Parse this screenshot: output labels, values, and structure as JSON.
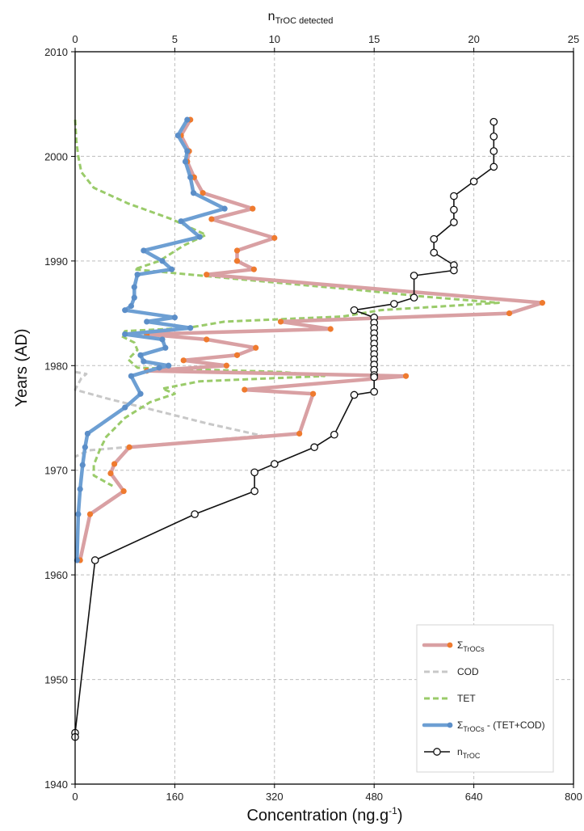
{
  "chart_data": {
    "type": "line",
    "orientation": "vertical-profile",
    "y_axis": {
      "label": "Years (AD)",
      "range": [
        1940,
        2010
      ],
      "ticks": [
        1940,
        1950,
        1960,
        1970,
        1980,
        1990,
        2000,
        2010
      ]
    },
    "x_bottom": {
      "label_main": "Concentration (ng.g",
      "label_sup": "-1",
      "label_end": ")",
      "range": [
        0,
        800
      ],
      "ticks": [
        0,
        160,
        320,
        480,
        640,
        800
      ]
    },
    "x_top": {
      "label_main": "n",
      "label_sub": "TrOC detected",
      "range": [
        0,
        25
      ],
      "ticks": [
        0,
        5,
        10,
        15,
        20,
        25
      ]
    },
    "grid": "dashed",
    "legend_position": "bottom-right",
    "series": [
      {
        "key": "total",
        "name": "Σ",
        "name_sub": "TrOCs",
        "axis": "bottom",
        "color": "#d9a0a3",
        "marker_color": "#ef7a2e",
        "style": "line+marker",
        "points": [
          [
            2003.5,
            185
          ],
          [
            2002.0,
            170
          ],
          [
            2000.5,
            183
          ],
          [
            1999.5,
            180
          ],
          [
            1998.0,
            191
          ],
          [
            1996.5,
            205
          ],
          [
            1995.0,
            285
          ],
          [
            1994.0,
            219
          ],
          [
            1992.2,
            320
          ],
          [
            1991.0,
            260
          ],
          [
            1990.0,
            260
          ],
          [
            1989.2,
            287
          ],
          [
            1988.7,
            211
          ],
          [
            1986.0,
            750
          ],
          [
            1985.0,
            697
          ],
          [
            1984.2,
            330
          ],
          [
            1983.5,
            410
          ],
          [
            1983.0,
            115
          ],
          [
            1982.5,
            211
          ],
          [
            1981.7,
            290
          ],
          [
            1981.0,
            260
          ],
          [
            1980.5,
            174
          ],
          [
            1980.0,
            243
          ],
          [
            1979.5,
            115
          ],
          [
            1979.0,
            531
          ],
          [
            1977.7,
            272
          ],
          [
            1977.3,
            382
          ],
          [
            1973.5,
            360
          ],
          [
            1972.2,
            87
          ],
          [
            1970.6,
            63
          ],
          [
            1969.7,
            57
          ],
          [
            1968.0,
            78
          ],
          [
            1965.8,
            24
          ],
          [
            1961.4,
            8
          ]
        ]
      },
      {
        "key": "cod",
        "name": "COD",
        "axis": "bottom",
        "color": "#c8c8c8",
        "style": "dashed",
        "points": [
          [
            1979.4,
            0
          ],
          [
            1979.2,
            18
          ],
          [
            1978.8,
            10
          ],
          [
            1977.7,
            0
          ],
          [
            1976.8,
            55
          ],
          [
            1975.4,
            150
          ],
          [
            1974.5,
            210
          ],
          [
            1973.3,
            300
          ],
          [
            1972.5,
            140
          ],
          [
            1971.9,
            22
          ],
          [
            1971.3,
            0
          ]
        ]
      },
      {
        "key": "tet",
        "name": "TET",
        "axis": "bottom",
        "color": "#9acb6a",
        "style": "dashed",
        "points": [
          [
            2003.5,
            0
          ],
          [
            2001.5,
            2
          ],
          [
            2000.0,
            5
          ],
          [
            1998.5,
            10
          ],
          [
            1997.0,
            30
          ],
          [
            1995.5,
            85
          ],
          [
            1994.0,
            155
          ],
          [
            1992.5,
            210
          ],
          [
            1991.5,
            175
          ],
          [
            1990.0,
            135
          ],
          [
            1989.2,
            95
          ],
          [
            1988.0,
            310
          ],
          [
            1987.2,
            460
          ],
          [
            1986.6,
            560
          ],
          [
            1986.0,
            680
          ],
          [
            1985.3,
            490
          ],
          [
            1984.7,
            430
          ],
          [
            1984.2,
            240
          ],
          [
            1983.6,
            180
          ],
          [
            1983.3,
            80
          ],
          [
            1982.8,
            75
          ],
          [
            1982.2,
            95
          ],
          [
            1981.5,
            100
          ],
          [
            1980.6,
            85
          ],
          [
            1979.8,
            100
          ],
          [
            1979.4,
            330
          ],
          [
            1979.0,
            400
          ],
          [
            1978.5,
            200
          ],
          [
            1977.8,
            140
          ],
          [
            1977.3,
            160
          ],
          [
            1976.5,
            120
          ],
          [
            1975.0,
            80
          ],
          [
            1973.2,
            50
          ],
          [
            1972.0,
            40
          ],
          [
            1970.5,
            30
          ],
          [
            1969.5,
            30
          ],
          [
            1968.5,
            60
          ]
        ]
      },
      {
        "key": "diff",
        "name": "Σ",
        "name_sub": "TrOCs",
        "name_tail": " - (TET+COD)",
        "axis": "bottom",
        "color": "#6d9fd3",
        "marker_color": "#5b8ec8",
        "style": "line+marker",
        "points": [
          [
            2003.5,
            180
          ],
          [
            2002.0,
            165
          ],
          [
            2000.5,
            180
          ],
          [
            1999.5,
            177
          ],
          [
            1998.0,
            185
          ],
          [
            1996.5,
            190
          ],
          [
            1995.0,
            240
          ],
          [
            1993.8,
            170
          ],
          [
            1992.3,
            200
          ],
          [
            1991.0,
            110
          ],
          [
            1990.0,
            140
          ],
          [
            1989.2,
            155
          ],
          [
            1988.7,
            100
          ],
          [
            1987.5,
            95
          ],
          [
            1986.5,
            95
          ],
          [
            1985.7,
            90
          ],
          [
            1985.3,
            80
          ],
          [
            1984.6,
            160
          ],
          [
            1984.2,
            115
          ],
          [
            1983.6,
            185
          ],
          [
            1983.0,
            80
          ],
          [
            1982.5,
            140
          ],
          [
            1981.7,
            145
          ],
          [
            1981.0,
            105
          ],
          [
            1980.4,
            110
          ],
          [
            1980.0,
            150
          ],
          [
            1979.8,
            135
          ],
          [
            1979.0,
            90
          ],
          [
            1977.3,
            105
          ],
          [
            1976.0,
            80
          ],
          [
            1973.5,
            20
          ],
          [
            1972.2,
            16
          ],
          [
            1970.5,
            12
          ],
          [
            1968.2,
            8
          ],
          [
            1965.8,
            5
          ],
          [
            1961.4,
            3
          ]
        ]
      },
      {
        "key": "ntroc",
        "name": "n",
        "name_sub": "TrOC",
        "axis": "top",
        "color": "#111111",
        "style": "line+open-marker",
        "points": [
          [
            2003.3,
            21
          ],
          [
            2001.9,
            21
          ],
          [
            2000.5,
            21
          ],
          [
            1999.0,
            21
          ],
          [
            1997.6,
            20
          ],
          [
            1996.2,
            19
          ],
          [
            1994.9,
            19
          ],
          [
            1993.7,
            19
          ],
          [
            1992.1,
            18
          ],
          [
            1990.8,
            18
          ],
          [
            1989.6,
            19
          ],
          [
            1989.1,
            19
          ],
          [
            1988.6,
            17
          ],
          [
            1986.5,
            17
          ],
          [
            1985.9,
            16
          ],
          [
            1985.3,
            14
          ],
          [
            1984.6,
            15
          ],
          [
            1984.1,
            15
          ],
          [
            1983.6,
            15
          ],
          [
            1983.1,
            15
          ],
          [
            1982.6,
            15
          ],
          [
            1982.1,
            15
          ],
          [
            1981.6,
            15
          ],
          [
            1981.1,
            15
          ],
          [
            1980.6,
            15
          ],
          [
            1980.1,
            15
          ],
          [
            1979.6,
            15
          ],
          [
            1979.1,
            15
          ],
          [
            1978.9,
            15
          ],
          [
            1977.5,
            15
          ],
          [
            1977.2,
            14
          ],
          [
            1973.4,
            13
          ],
          [
            1972.2,
            12
          ],
          [
            1970.6,
            10
          ],
          [
            1969.8,
            9
          ],
          [
            1968.0,
            9
          ],
          [
            1965.8,
            6
          ],
          [
            1961.4,
            1
          ],
          [
            1944.9,
            0
          ],
          [
            1944.5,
            0
          ]
        ]
      }
    ]
  }
}
